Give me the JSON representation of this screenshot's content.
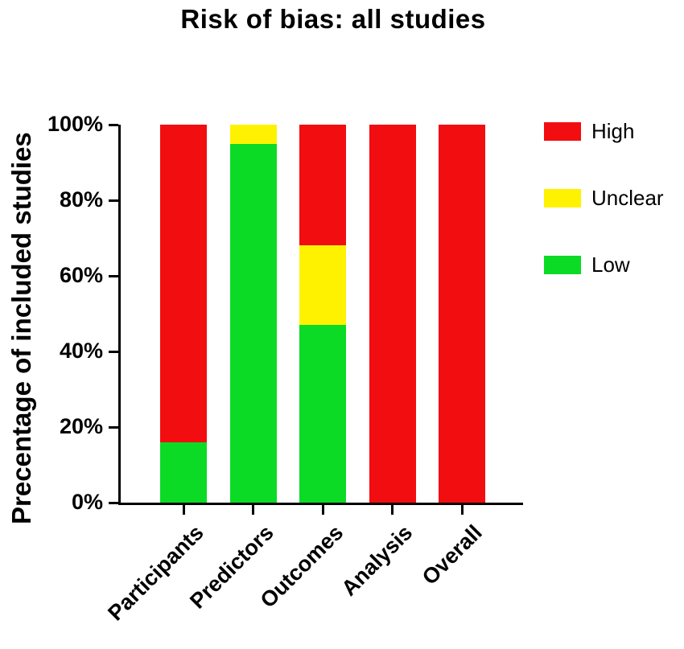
{
  "chart_data": {
    "type": "bar",
    "stacked": true,
    "title": "Risk of bias: all studies",
    "ylabel": "Precentage of included studies",
    "xlabel": "",
    "categories": [
      "Participants",
      "Predictors",
      "Outcomes",
      "Analysis",
      "Overall"
    ],
    "series": [
      {
        "name": "High",
        "color": "#F20D11",
        "values": [
          84,
          0,
          32,
          100,
          100
        ]
      },
      {
        "name": "Unclear",
        "color": "#FFF200",
        "values": [
          0,
          5,
          21,
          0,
          0
        ]
      },
      {
        "name": "Low",
        "color": "#0BDB25",
        "values": [
          16,
          95,
          47,
          0,
          0
        ]
      }
    ],
    "ylim": [
      0,
      100
    ],
    "yticks": [
      "0%",
      "20%",
      "40%",
      "60%",
      "80%",
      "100%"
    ],
    "ytick_values": [
      0,
      20,
      40,
      60,
      80,
      100
    ],
    "legend_position": "right",
    "grid": false,
    "axis_color": "#000000",
    "background_color": "#FFFFFF"
  }
}
